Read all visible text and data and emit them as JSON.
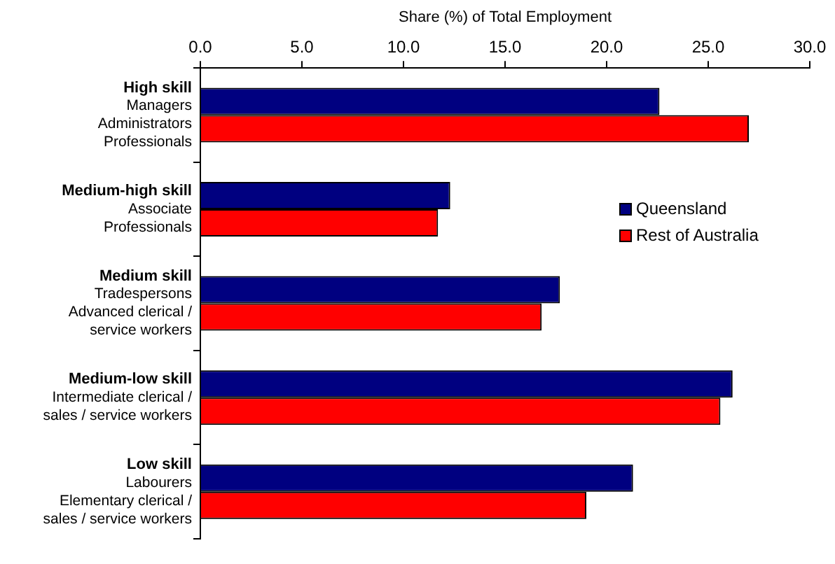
{
  "chart_data": {
    "type": "bar",
    "orientation": "horizontal",
    "xlabel": "Share (%) of Total Employment",
    "categories": [
      "High skill\nManagers\nAdministrators\nProfessionals",
      "Medium-high skill\nAssociate\nProfessionals",
      "Medium skill\nTradespersons\nAdvanced clerical /\nservice workers",
      "Medium-low skill\nIntermediate clerical /\nsales / service workers",
      "Low skill\nLabourers\nElementary clerical /\nsales / service workers"
    ],
    "series": [
      {
        "name": "Queensland",
        "color": "#000080",
        "values": [
          22.6,
          12.3,
          17.7,
          26.2,
          21.3
        ]
      },
      {
        "name": "Rest of Australia",
        "color": "#ff0000",
        "values": [
          27.0,
          11.7,
          16.8,
          25.6,
          19.0
        ]
      }
    ],
    "xlim": [
      0,
      30
    ],
    "xticks": [
      {
        "value": 0,
        "label": "0.0"
      },
      {
        "value": 5,
        "label": "5.0"
      },
      {
        "value": 10,
        "label": "10.0"
      },
      {
        "value": 15,
        "label": "15.0"
      },
      {
        "value": 20,
        "label": "20.0"
      },
      {
        "value": 25,
        "label": "25.0"
      },
      {
        "value": 30,
        "label": "30.0"
      }
    ],
    "grid": false,
    "legend": "right"
  }
}
